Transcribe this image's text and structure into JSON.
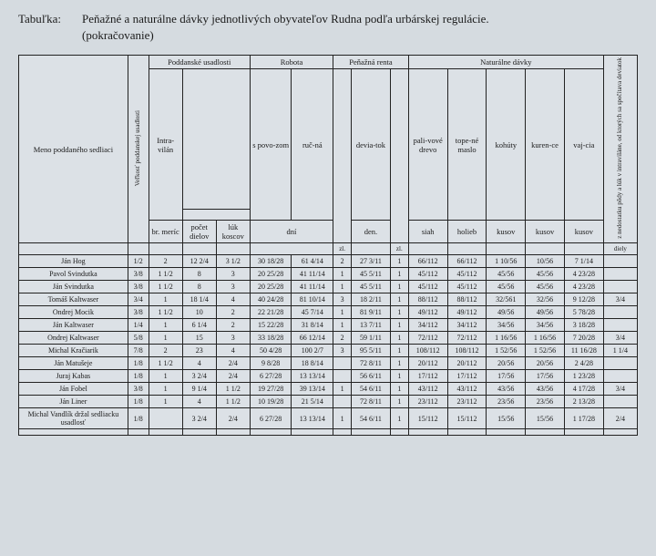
{
  "title_label": "Tabuľka:",
  "title_main": "Peňažné a naturálne dávky jednotlivých obyvateľov Rudna podľa urbárskej regulácie.",
  "title_sub": "(pokračovanie)",
  "headers": {
    "meno": "Meno poddaného sedliaci",
    "velkost": "Veľkosť poddanskej usadlosti",
    "podd": "Poddanské usadlosti",
    "intravilan": "Intra-vilán",
    "br_meric": "br. meríc",
    "pocet_dielov": "počet dielov",
    "luk_koscov": "lúk koscov",
    "robota": "Robota",
    "s_povozom": "s povo-zom",
    "rucna": "ruč-ná",
    "dni": "dní",
    "penazna_renta": "Peňažná renta",
    "deviatok": "devia-tok",
    "zl": "zl.",
    "den": "den.",
    "naturalne": "Naturálne dávky",
    "palivove_drevo": "pali-vové drevo",
    "topene_maslo": "tope-né maslo",
    "kohuty": "kohúty",
    "kurence": "kuren-ce",
    "vajcia": "vaj-cia",
    "siah": "siah",
    "holieb": "holieb",
    "kusov": "kusov",
    "diely": "diely",
    "nedostatok": "z nedostatku pôdy a lúk v intraviláne, od ktorých sa spočítava deviatok"
  },
  "rows": [
    {
      "name": "Ján Hog",
      "v": "1/2",
      "br": "2",
      "pd": "12 2/4",
      "lk": "3 1/2",
      "sp": "30 18/28",
      "ru": "61 4/14",
      "zl": "2",
      "dev": "27 3/11",
      "zl2": "1",
      "pal": "66/112",
      "top": "66/112",
      "koh": "1 10/56",
      "kur": "10/56",
      "vaj": "7 1/14",
      "nd": ""
    },
    {
      "name": "Pavol Svindutka",
      "v": "3/8",
      "br": "1 1/2",
      "pd": "8",
      "lk": "3",
      "sp": "20 25/28",
      "ru": "41 11/14",
      "zl": "1",
      "dev": "45 5/11",
      "zl2": "1",
      "pal": "45/112",
      "top": "45/112",
      "koh": "45/56",
      "kur": "45/56",
      "vaj": "4 23/28",
      "nd": ""
    },
    {
      "name": "Ján Svindutka",
      "v": "3/8",
      "br": "1 1/2",
      "pd": "8",
      "lk": "3",
      "sp": "20 25/28",
      "ru": "41 11/14",
      "zl": "1",
      "dev": "45 5/11",
      "zl2": "1",
      "pal": "45/112",
      "top": "45/112",
      "koh": "45/56",
      "kur": "45/56",
      "vaj": "4 23/28",
      "nd": ""
    },
    {
      "name": "Tomáš Kaltwaser",
      "v": "3/4",
      "br": "1",
      "pd": "18 1/4",
      "lk": "4",
      "sp": "40 24/28",
      "ru": "81 10/14",
      "zl": "3",
      "dev": "18 2/11",
      "zl2": "1",
      "pal": "88/112",
      "top": "88/112",
      "koh": "32/561",
      "kur": "32/56",
      "vaj": "9 12/28",
      "nd": "3/4"
    },
    {
      "name": "Ondrej Mocik",
      "v": "3/8",
      "br": "1 1/2",
      "pd": "10",
      "lk": "2",
      "sp": "22 21/28",
      "ru": "45 7/14",
      "zl": "1",
      "dev": "81 9/11",
      "zl2": "1",
      "pal": "49/112",
      "top": "49/112",
      "koh": "49/56",
      "kur": "49/56",
      "vaj": "5 78/28",
      "nd": ""
    },
    {
      "name": "Ján Kaltwaser",
      "v": "1/4",
      "br": "1",
      "pd": "6 1/4",
      "lk": "2",
      "sp": "15 22/28",
      "ru": "31 8/14",
      "zl": "1",
      "dev": "13 7/11",
      "zl2": "1",
      "pal": "34/112",
      "top": "34/112",
      "koh": "34/56",
      "kur": "34/56",
      "vaj": "3 18/28",
      "nd": ""
    },
    {
      "name": "Ondrej Kaltwaser",
      "v": "5/8",
      "br": "1",
      "pd": "15",
      "lk": "3",
      "sp": "33 18/28",
      "ru": "66 12/14",
      "zl": "2",
      "dev": "59 1/11",
      "zl2": "1",
      "pal": "72/112",
      "top": "72/112",
      "koh": "1 16/56",
      "kur": "1 16/56",
      "vaj": "7 20/28",
      "nd": "3/4"
    },
    {
      "name": "Michal Kračiarik",
      "v": "7/8",
      "br": "2",
      "pd": "23",
      "lk": "4",
      "sp": "50 4/28",
      "ru": "100 2/7",
      "zl": "3",
      "dev": "95 5/11",
      "zl2": "1",
      "pal": "108/112",
      "top": "108/112",
      "koh": "1 52/56",
      "kur": "1 52/56",
      "vaj": "11 16/28",
      "nd": "1 1/4"
    },
    {
      "name": "Ján Matušeje",
      "v": "1/8",
      "br": "1 1/2",
      "pd": "4",
      "lk": "2/4",
      "sp": "9 8/28",
      "ru": "18 8/14",
      "zl": "",
      "dev": "72 8/11",
      "zl2": "1",
      "pal": "20/112",
      "top": "20/112",
      "koh": "20/56",
      "kur": "20/56",
      "vaj": "2 4/28",
      "nd": ""
    },
    {
      "name": "Juraj Kabas",
      "v": "1/8",
      "br": "1",
      "pd": "3 2/4",
      "lk": "2/4",
      "sp": "6 27/28",
      "ru": "13 13/14",
      "zl": "",
      "dev": "56 6/11",
      "zl2": "1",
      "pal": "17/112",
      "top": "17/112",
      "koh": "17/56",
      "kur": "17/56",
      "vaj": "1 23/28",
      "nd": ""
    },
    {
      "name": "Ján Fobel",
      "v": "3/8",
      "br": "1",
      "pd": "9 1/4",
      "lk": "1 1/2",
      "sp": "19 27/28",
      "ru": "39 13/14",
      "zl": "1",
      "dev": "54 6/11",
      "zl2": "1",
      "pal": "43/112",
      "top": "43/112",
      "koh": "43/56",
      "kur": "43/56",
      "vaj": "4 17/28",
      "nd": "3/4"
    },
    {
      "name": "Ján Liner",
      "v": "1/8",
      "br": "1",
      "pd": "4",
      "lk": "1 1/2",
      "sp": "10 19/28",
      "ru": "21 5/14",
      "zl": "",
      "dev": "72 8/11",
      "zl2": "1",
      "pal": "23/112",
      "top": "23/112",
      "koh": "23/56",
      "kur": "23/56",
      "vaj": "2 13/28",
      "nd": ""
    },
    {
      "name": "Michal Vandlík držal sedliacku usadlosť",
      "v": "1/8",
      "br": "",
      "pd": "3 2/4",
      "lk": "2/4",
      "sp": "6 27/28",
      "ru": "13 13/14",
      "zl": "1",
      "dev": "54 6/11",
      "zl2": "1",
      "pal": "15/112",
      "top": "15/112",
      "koh": "15/56",
      "kur": "15/56",
      "vaj": "1 17/28",
      "nd": "2/4"
    }
  ]
}
